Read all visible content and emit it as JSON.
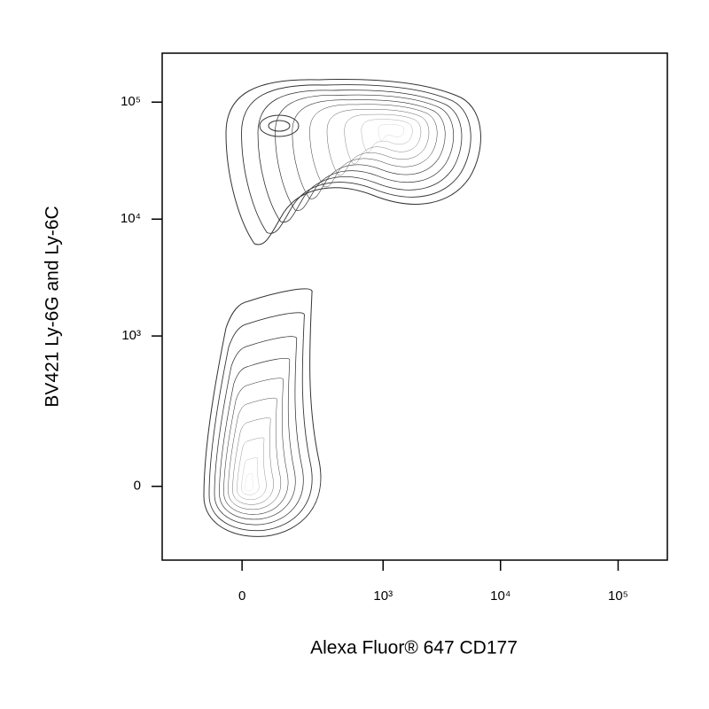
{
  "chart_data": {
    "type": "contour",
    "x_label": "Alexa Fluor® 647 CD177",
    "y_label": "BV421 Ly-6G and Ly-6C",
    "xscale": "biexponential",
    "yscale": "biexponential",
    "xlim": [
      -290,
      262144
    ],
    "ylim": [
      -210,
      262144
    ],
    "xticks": [
      0,
      {
        "value": 1000,
        "label": "10³"
      },
      {
        "value": 10000,
        "label": "10⁴"
      },
      {
        "value": 100000,
        "label": "10⁵"
      }
    ],
    "yticks": [
      0,
      {
        "value": 1000,
        "label": "10³"
      },
      {
        "value": 10000,
        "label": "10⁴"
      },
      {
        "value": 100000,
        "label": "10⁵"
      }
    ],
    "color": "#333333"
  }
}
